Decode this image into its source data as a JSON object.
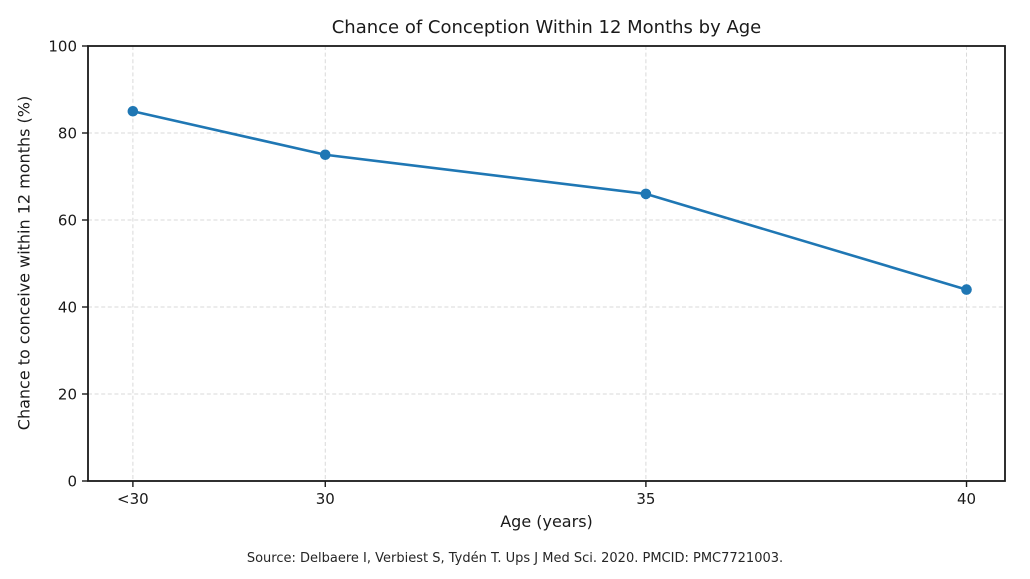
{
  "figure": {
    "title": "Chance of Conception Within 12 Months by Age",
    "source_note": "Source: Delbaere I, Verbiest S, Tydén T. Ups J Med Sci. 2020. PMCID: PMC7721003."
  },
  "chart_data": {
    "type": "line",
    "title": "Chance of Conception Within 12 Months by Age",
    "xlabel": "Age (years)",
    "ylabel": "Chance to conceive within 12 months (%)",
    "categories": [
      "<30",
      "30",
      "35",
      "40"
    ],
    "x_positions": [
      27,
      30,
      35,
      40
    ],
    "values": [
      85,
      75,
      66,
      44
    ],
    "series": [
      {
        "name": "Chance to conceive within 12 months (%)",
        "values": [
          85,
          75,
          66,
          44
        ]
      }
    ],
    "yticks": [
      0,
      20,
      40,
      60,
      80,
      100
    ],
    "ylim": [
      0,
      100
    ],
    "xlim": [
      26.3,
      40.6
    ],
    "grid": true,
    "grid_style": "dashed",
    "legend": "none",
    "marker": "circle",
    "source": "Source: Delbaere I, Verbiest S, Tydén T. Ups J Med Sci. 2020. PMCID: PMC7721003."
  },
  "colors": {
    "line": "#1f77b4",
    "marker": "#1f77b4",
    "grid": "#d9d9d9",
    "spine": "#1a1a1a",
    "text": "#1a1a1a",
    "background": "#ffffff"
  }
}
